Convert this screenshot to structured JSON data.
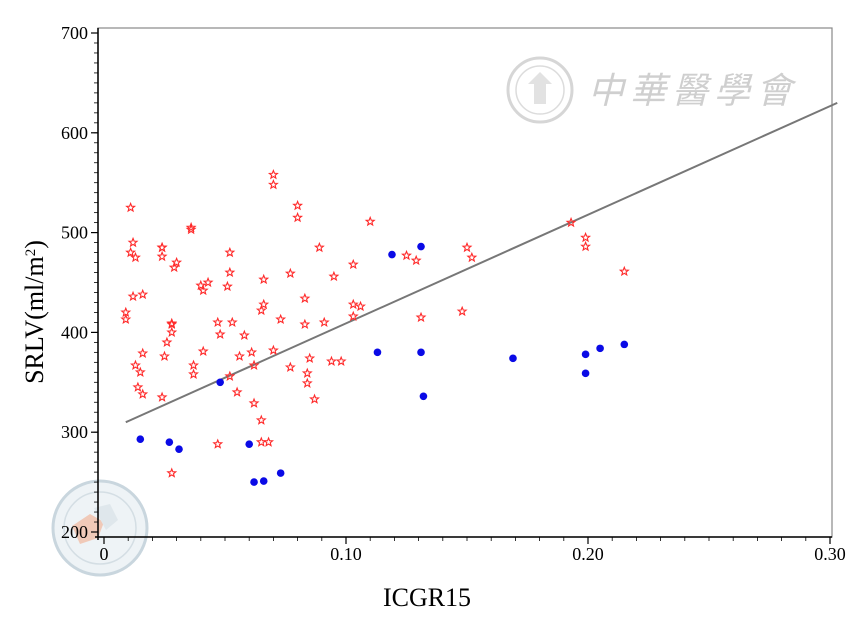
{
  "chart_data": {
    "type": "scatter",
    "title": "",
    "xlabel": "ICGR15",
    "ylabel": {
      "text": "SRLV(ml/m",
      "sup": "2",
      "suffix": ")"
    },
    "xlim": [
      0,
      0.3
    ],
    "ylim": [
      200,
      700
    ],
    "xticks": [
      0,
      0.1,
      0.2,
      0.3
    ],
    "xtick_labels": [
      "0",
      "0.10",
      "0.20",
      "0.30"
    ],
    "yticks": [
      200,
      300,
      400,
      500,
      600,
      700
    ],
    "ytick_labels": [
      "200",
      "300",
      "400",
      "500",
      "600",
      "700"
    ],
    "grid": false,
    "series": [
      {
        "marker": "star",
        "color": "#ff2a2a",
        "points": [
          [
            0.011,
            525
          ],
          [
            0.012,
            490
          ],
          [
            0.011,
            480
          ],
          [
            0.013,
            475
          ],
          [
            0.012,
            436
          ],
          [
            0.016,
            438
          ],
          [
            0.009,
            420
          ],
          [
            0.009,
            413
          ],
          [
            0.016,
            379
          ],
          [
            0.013,
            367
          ],
          [
            0.015,
            360
          ],
          [
            0.014,
            345
          ],
          [
            0.016,
            338
          ],
          [
            0.024,
            485
          ],
          [
            0.024,
            485
          ],
          [
            0.024,
            476
          ],
          [
            0.03,
            470
          ],
          [
            0.029,
            465
          ],
          [
            0.028,
            409
          ],
          [
            0.028,
            408
          ],
          [
            0.028,
            400
          ],
          [
            0.026,
            390
          ],
          [
            0.025,
            376
          ],
          [
            0.024,
            335
          ],
          [
            0.028,
            259
          ],
          [
            0.036,
            505
          ],
          [
            0.036,
            503
          ],
          [
            0.04,
            447
          ],
          [
            0.041,
            442
          ],
          [
            0.043,
            450
          ],
          [
            0.041,
            381
          ],
          [
            0.037,
            367
          ],
          [
            0.037,
            358
          ],
          [
            0.047,
            410
          ],
          [
            0.048,
            398
          ],
          [
            0.052,
            480
          ],
          [
            0.052,
            460
          ],
          [
            0.051,
            446
          ],
          [
            0.053,
            410
          ],
          [
            0.056,
            376
          ],
          [
            0.055,
            340
          ],
          [
            0.052,
            356
          ],
          [
            0.047,
            288
          ],
          [
            0.058,
            397
          ],
          [
            0.061,
            380
          ],
          [
            0.062,
            367
          ],
          [
            0.062,
            329
          ],
          [
            0.065,
            312
          ],
          [
            0.066,
            428
          ],
          [
            0.065,
            422
          ],
          [
            0.066,
            453
          ],
          [
            0.065,
            290
          ],
          [
            0.068,
            290
          ],
          [
            0.07,
            558
          ],
          [
            0.07,
            548
          ],
          [
            0.07,
            382
          ],
          [
            0.073,
            413
          ],
          [
            0.077,
            459
          ],
          [
            0.077,
            365
          ],
          [
            0.08,
            527
          ],
          [
            0.08,
            515
          ],
          [
            0.083,
            434
          ],
          [
            0.083,
            408
          ],
          [
            0.085,
            374
          ],
          [
            0.084,
            359
          ],
          [
            0.084,
            349
          ],
          [
            0.087,
            333
          ],
          [
            0.089,
            485
          ],
          [
            0.091,
            410
          ],
          [
            0.095,
            456
          ],
          [
            0.094,
            371
          ],
          [
            0.098,
            371
          ],
          [
            0.103,
            468
          ],
          [
            0.103,
            428
          ],
          [
            0.103,
            416
          ],
          [
            0.106,
            426
          ],
          [
            0.11,
            511
          ],
          [
            0.125,
            477
          ],
          [
            0.129,
            472
          ],
          [
            0.131,
            415
          ],
          [
            0.148,
            421
          ],
          [
            0.15,
            485
          ],
          [
            0.152,
            475
          ],
          [
            0.193,
            510
          ],
          [
            0.199,
            495
          ],
          [
            0.199,
            486
          ],
          [
            0.215,
            461
          ]
        ]
      },
      {
        "marker": "circle",
        "color": "#0a0ae6",
        "points": [
          [
            0.015,
            293
          ],
          [
            0.027,
            290
          ],
          [
            0.031,
            283
          ],
          [
            0.048,
            350
          ],
          [
            0.06,
            288
          ],
          [
            0.062,
            250
          ],
          [
            0.066,
            251
          ],
          [
            0.073,
            259
          ],
          [
            0.113,
            380
          ],
          [
            0.119,
            478
          ],
          [
            0.131,
            486
          ],
          [
            0.131,
            380
          ],
          [
            0.132,
            336
          ],
          [
            0.169,
            374
          ],
          [
            0.199,
            378
          ],
          [
            0.199,
            359
          ],
          [
            0.205,
            384
          ],
          [
            0.215,
            388
          ]
        ]
      }
    ],
    "trendline": {
      "x": [
        0.009,
        0.303
      ],
      "y": [
        310,
        630
      ],
      "color": "#777777"
    },
    "colors": {
      "axis": "#000000",
      "plot_border": "#888888",
      "watermark": "#cfcfcf"
    }
  },
  "watermark": {
    "icon": "medical-association-seal-icon",
    "text": "中華醫學會"
  }
}
